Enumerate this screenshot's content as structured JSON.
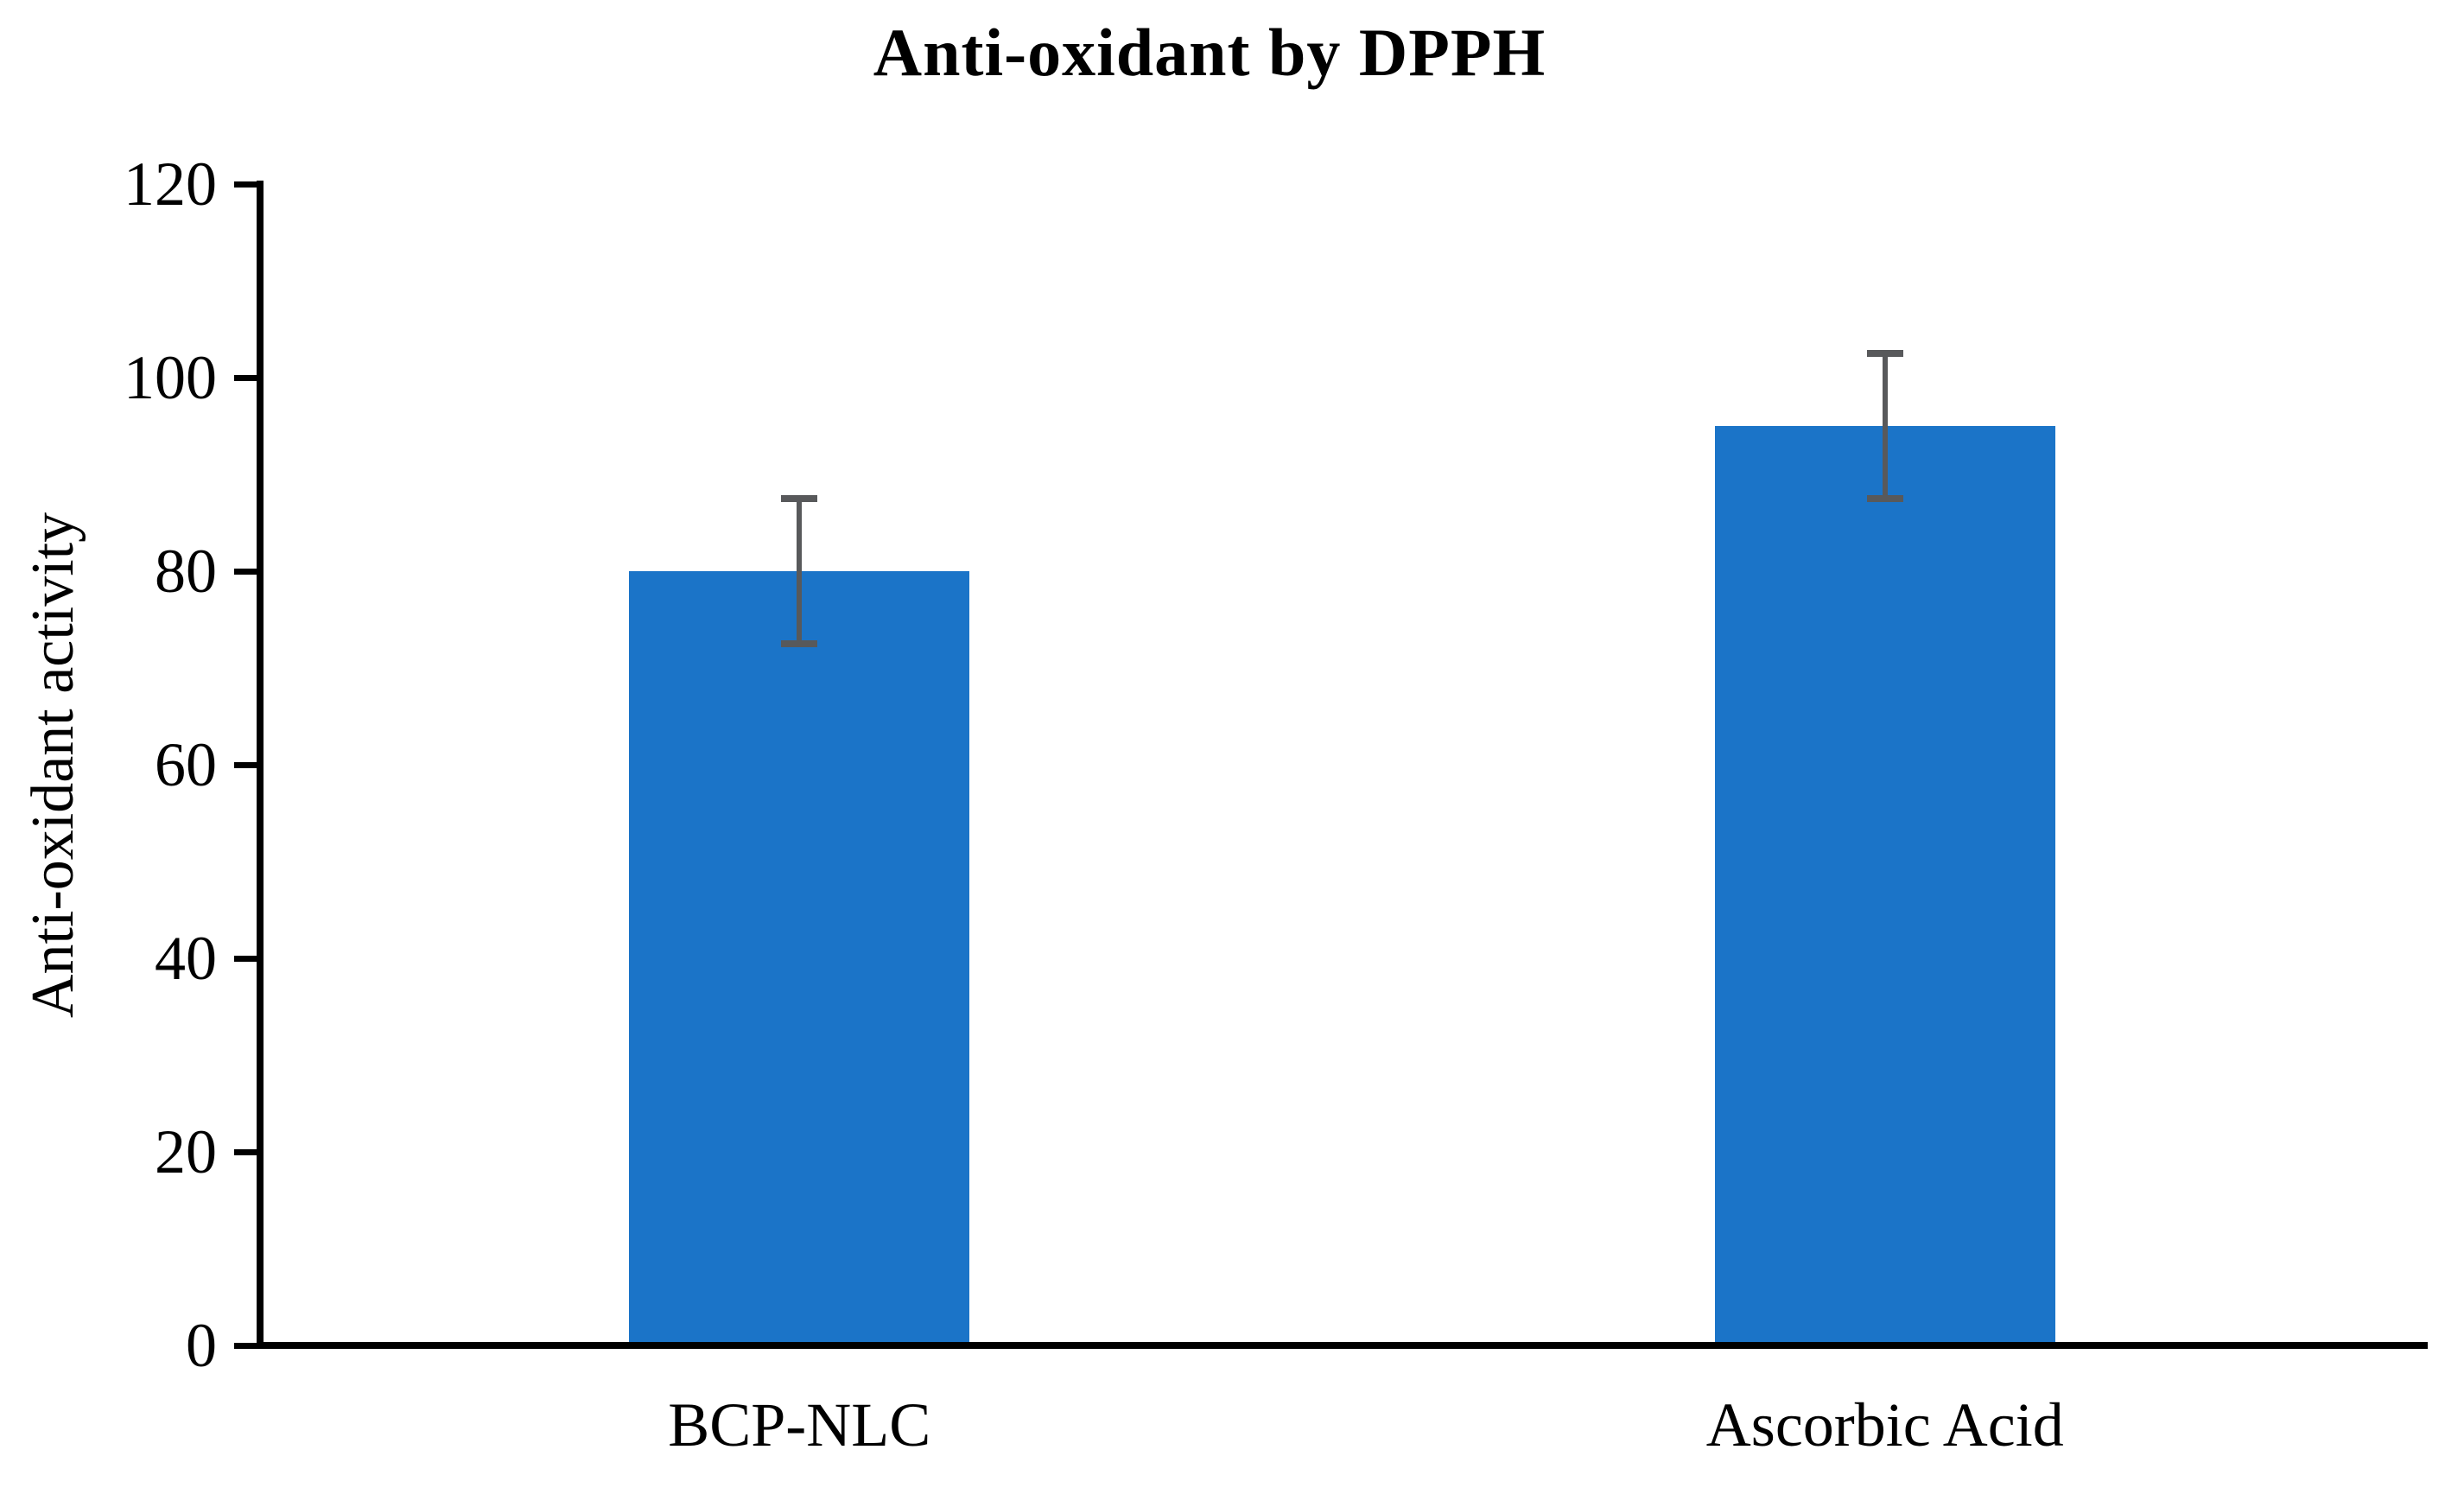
{
  "chart_data": {
    "type": "bar",
    "title": "Anti-oxidant by DPPH",
    "ylabel": "Anti-oxidant activity",
    "xlabel": "",
    "categories": [
      "BCP-NLC",
      "Ascorbic Acid"
    ],
    "values": [
      80,
      95
    ],
    "error_bars": [
      7.5,
      7.5
    ],
    "ylim": [
      0,
      120
    ],
    "ytick_step": 20,
    "yticks": [
      0,
      20,
      40,
      60,
      80,
      100,
      120
    ],
    "grid": false,
    "legend": false,
    "colors": {
      "bar": "#1B74C8",
      "error_bar": "#58595B",
      "axis": "#000000",
      "text": "#000000",
      "background": "#FFFFFF"
    }
  }
}
